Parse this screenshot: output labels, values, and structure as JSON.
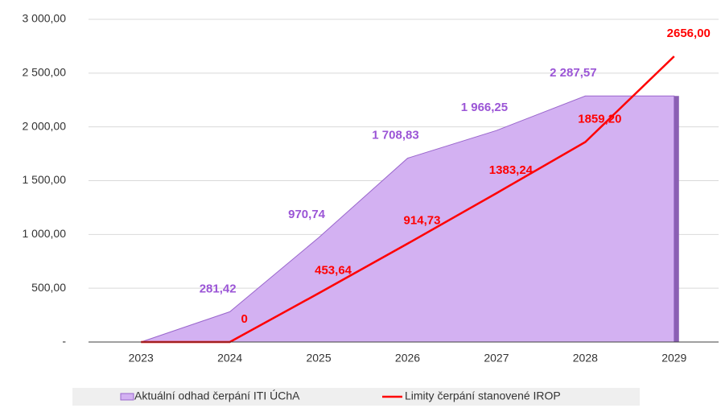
{
  "chart_data": {
    "type": "area-line",
    "categories": [
      "2023",
      "2024",
      "2025",
      "2026",
      "2027",
      "2028",
      "2029"
    ],
    "series": [
      {
        "name": "Aktuální odhad čerpání ITI ÚChA",
        "type": "area",
        "color": "#d3b1f2",
        "edge": "#9966cc",
        "values": [
          0,
          281.42,
          970.74,
          1708.83,
          1966.25,
          2287.57,
          2287.57
        ],
        "value_labels": [
          null,
          "281,42",
          "970,74",
          "1 708,83",
          "1 966,25",
          "2 287,57",
          null
        ]
      },
      {
        "name": "Limity čerpání stanovené IROP",
        "type": "line",
        "color": "#ff0000",
        "values": [
          0,
          0,
          453.64,
          914.73,
          1383.24,
          1859.2,
          2656.0
        ],
        "value_labels": [
          null,
          "0",
          "453,64",
          "914,73",
          "1383,24",
          "1859,20",
          "2656,00"
        ]
      }
    ],
    "ylim": [
      0,
      3000
    ],
    "yticks": [
      {
        "value": 0,
        "label": "-"
      },
      {
        "value": 500,
        "label": "500,00"
      },
      {
        "value": 1000,
        "label": "1 000,00"
      },
      {
        "value": 1500,
        "label": "1 500,00"
      },
      {
        "value": 2000,
        "label": "2 000,00"
      },
      {
        "value": 2500,
        "label": "2 500,00"
      },
      {
        "value": 3000,
        "label": "3 000,00"
      }
    ],
    "grid": true,
    "legend": "bottom"
  }
}
